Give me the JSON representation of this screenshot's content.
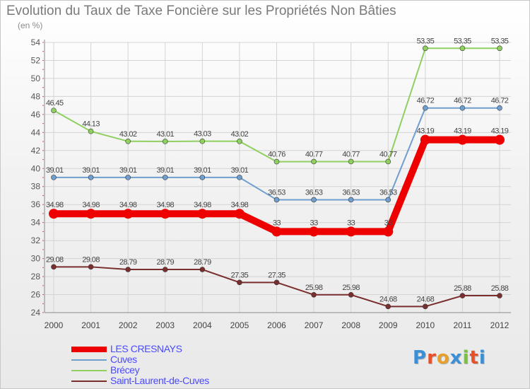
{
  "header": {
    "title": "Evolution du Taux de Taxe Foncière sur les Propriétés Non Bâties",
    "unit": "(en %)"
  },
  "logo": {
    "text": "Proxiti",
    "letter_colors": [
      "#3a8fd6",
      "#e8502a",
      "#e8a02a",
      "#3a8fd6",
      "#7ac142",
      "#e8502a",
      "#3a8fd6"
    ]
  },
  "chart_data": {
    "type": "line",
    "title": "Evolution du Taux de Taxe Foncière sur les Propriétés Non Bâties",
    "ylabel": "(en %)",
    "x": [
      "2000",
      "2001",
      "2002",
      "2003",
      "2004",
      "2005",
      "2006",
      "2007",
      "2008",
      "2009",
      "2010",
      "2011",
      "2012"
    ],
    "ylim": [
      24,
      54
    ],
    "yticks": [
      24,
      26,
      28,
      30,
      32,
      34,
      36,
      38,
      40,
      42,
      44,
      46,
      48,
      50,
      52,
      54
    ],
    "grid": true,
    "legend_position": "bottom-left",
    "series": [
      {
        "name": "LES CRESNAYS",
        "color": "#ee0000",
        "values": [
          34.98,
          34.98,
          34.98,
          34.98,
          34.98,
          34.98,
          33,
          33,
          33,
          33,
          43.19,
          43.19,
          43.19
        ],
        "labels": [
          "34.98",
          "34.98",
          "34.98",
          "34.98",
          "34.98",
          "34.98",
          "33",
          "33",
          "33",
          "33",
          "43.19",
          "43.19",
          "43.19"
        ]
      },
      {
        "name": "Cuves",
        "color": "#6f9fcf",
        "values": [
          39.01,
          39.01,
          39.01,
          39.01,
          39.01,
          39.01,
          36.53,
          36.53,
          36.53,
          36.53,
          46.72,
          46.72,
          46.72
        ],
        "labels": [
          "39.01",
          "39.01",
          "39.01",
          "39.01",
          "39.01",
          "39.01",
          "36.53",
          "36.53",
          "36.53",
          "36.53",
          "46.72",
          "46.72",
          "46.72"
        ]
      },
      {
        "name": "Brécey",
        "color": "#8fd060",
        "values": [
          46.45,
          44.13,
          43.02,
          43.01,
          43.03,
          43.02,
          40.76,
          40.77,
          40.77,
          40.77,
          53.35,
          53.35,
          53.35
        ],
        "labels": [
          "46.45",
          "44.13",
          "43.02",
          "43.01",
          "43.03",
          "43.02",
          "40.76",
          "40.77",
          "40.77",
          "40.77",
          "53.35",
          "53.35",
          "53.35"
        ]
      },
      {
        "name": "Saint-Laurent-de-Cuves",
        "color": "#7a2e2e",
        "values": [
          29.08,
          29.08,
          28.79,
          28.79,
          28.79,
          27.35,
          27.35,
          25.98,
          25.98,
          24.68,
          24.68,
          25.88,
          25.88
        ],
        "labels": [
          "29.08",
          "29.08",
          "28.79",
          "28.79",
          "28.79",
          "27.35",
          "27.35",
          "25.98",
          "25.98",
          "24.68",
          "24.68",
          "25.88",
          "25.88"
        ]
      }
    ]
  }
}
